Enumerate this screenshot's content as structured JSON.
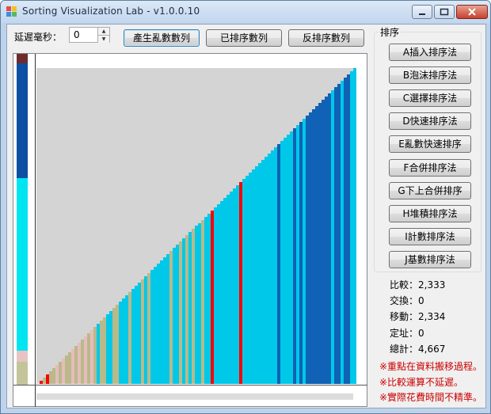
{
  "window": {
    "title": "Sorting Visualization Lab - v1.0.0.10"
  },
  "colors": {
    "accent_red": "#cc0000",
    "bar_red": "#ff0000",
    "bar_blue": "#0f62b5",
    "bar_cyan": "#00c8e8",
    "bar_tan": "#b9b98a",
    "bar_pink": "#e6bcbc",
    "canvas_bg": "#d4d4d4"
  },
  "delay": {
    "label": "延遲毫秒：",
    "value": "0"
  },
  "toolbar": {
    "generate_random": "產生亂數數列",
    "sorted": "已排序數列",
    "reverse_sorted": "反排序數列"
  },
  "sort_group": {
    "label": "排序",
    "buttons": [
      "A插入排序法",
      "B泡沫排序法",
      "C選擇排序法",
      "D快速排序法",
      "E亂數快速排序",
      "F合併排序法",
      "G下上合併排序",
      "H堆積排序法",
      "I計數排序法",
      "J基數排序法"
    ]
  },
  "stats": [
    {
      "label": "比較",
      "value": "2,333"
    },
    {
      "label": "交換",
      "value": "0"
    },
    {
      "label": "移動",
      "value": "2,334"
    },
    {
      "label": "定址",
      "value": "0"
    },
    {
      "label": "總計",
      "value": "4,667"
    }
  ],
  "notes": [
    "※重點在資料搬移過程。",
    "※比較運算不延遲。",
    "※實際花費時間不精準。"
  ],
  "visualization": {
    "bar_count": 100,
    "bar_colors": [
      "r",
      "y",
      "r",
      "y",
      "y",
      "p",
      "y",
      "p",
      "y",
      "y",
      "p",
      "y",
      "p",
      "y",
      "p",
      "y",
      "p",
      "y",
      "c",
      "y",
      "y",
      "c",
      "c",
      "y",
      "y",
      "c",
      "c",
      "c",
      "y",
      "c",
      "c",
      "c",
      "y",
      "c",
      "y",
      "c",
      "c",
      "c",
      "c",
      "c",
      "c",
      "y",
      "c",
      "c",
      "y",
      "c",
      "y",
      "c",
      "y",
      "c",
      "c",
      "y",
      "c",
      "c",
      "r",
      "c",
      "c",
      "c",
      "c",
      "c",
      "c",
      "c",
      "c",
      "r",
      "c",
      "c",
      "c",
      "c",
      "c",
      "c",
      "c",
      "c",
      "c",
      "c",
      "c",
      "b",
      "c",
      "c",
      "c",
      "c",
      "b",
      "c",
      "b",
      "c",
      "b",
      "b",
      "b",
      "b",
      "b",
      "b",
      "b",
      "b",
      "c",
      "b",
      "b",
      "c",
      "b",
      "b",
      "c",
      "c"
    ]
  }
}
